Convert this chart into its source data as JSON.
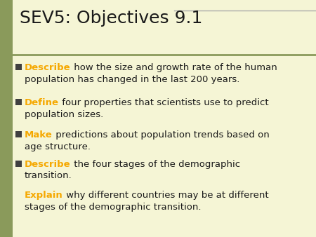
{
  "title": "SEV5: Objectives 9.1",
  "background_color": "#f5f5d5",
  "left_bar_color": "#8a9a5b",
  "title_color": "#1a1a1a",
  "title_fontsize": 18,
  "bullet_color": "#404040",
  "bullet_items": [
    {
      "keyword": "Describe",
      "keyword_color": "#f5a800",
      "rest": " how the size and growth rate of the human\npopulation has changed in the last 200 years.",
      "rest_color": "#1a1a1a",
      "has_bullet": true
    },
    {
      "keyword": "Define",
      "keyword_color": "#f5a800",
      "rest": " four properties that scientists use to predict\npopulation sizes.",
      "rest_color": "#1a1a1a",
      "has_bullet": true
    },
    {
      "keyword": "Make",
      "keyword_color": "#f5a800",
      "rest": " predictions about population trends based on\nage structure.",
      "rest_color": "#1a1a1a",
      "has_bullet": true
    },
    {
      "keyword": "Describe",
      "keyword_color": "#f5a800",
      "rest": " the four stages of the demographic\ntransition.",
      "rest_color": "#1a1a1a",
      "has_bullet": true
    },
    {
      "keyword": "Explain",
      "keyword_color": "#f5a800",
      "rest": " why different countries may be at different\nstages of the demographic transition.",
      "rest_color": "#1a1a1a",
      "has_bullet": false
    }
  ],
  "text_fontsize": 9.5,
  "figsize": [
    4.5,
    3.38
  ],
  "dpi": 100
}
